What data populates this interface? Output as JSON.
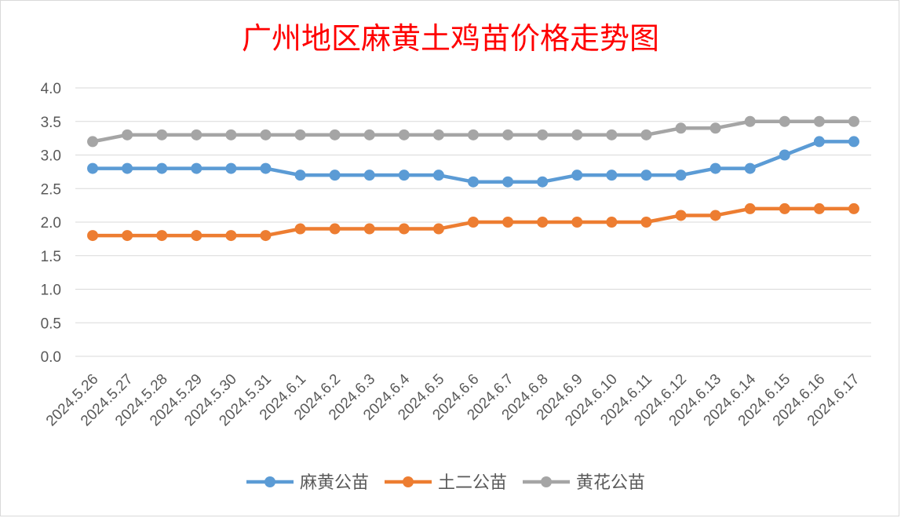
{
  "chart_data": {
    "type": "line",
    "title": "广州地区麻黄土鸡苗价格走势图",
    "xlabel": "",
    "ylabel": "",
    "ylim": [
      0,
      4.0
    ],
    "yticks": [
      "0.0",
      "0.5",
      "1.0",
      "1.5",
      "2.0",
      "2.5",
      "3.0",
      "3.5",
      "4.0"
    ],
    "grid": true,
    "legend_position": "bottom",
    "categories": [
      "2024.5.26",
      "2024.5.27",
      "2024.5.28",
      "2024.5.29",
      "2024.5.30",
      "2024.5.31",
      "2024.6.1",
      "2024.6.2",
      "2024.6.3",
      "2024.6.4",
      "2024.6.5",
      "2024.6.6",
      "2024.6.7",
      "2024.6.8",
      "2024.6.9",
      "2024.6.10",
      "2024.6.11",
      "2024.6.12",
      "2024.6.13",
      "2024.6.14",
      "2024.6.15",
      "2024.6.16",
      "2024.6.17"
    ],
    "series": [
      {
        "name": "麻黄公苗",
        "color": "#5b9bd5",
        "values": [
          2.8,
          2.8,
          2.8,
          2.8,
          2.8,
          2.8,
          2.7,
          2.7,
          2.7,
          2.7,
          2.7,
          2.6,
          2.6,
          2.6,
          2.7,
          2.7,
          2.7,
          2.7,
          2.8,
          2.8,
          3.0,
          3.2,
          3.2
        ]
      },
      {
        "name": "土二公苗",
        "color": "#ed7d31",
        "values": [
          1.8,
          1.8,
          1.8,
          1.8,
          1.8,
          1.8,
          1.9,
          1.9,
          1.9,
          1.9,
          1.9,
          2.0,
          2.0,
          2.0,
          2.0,
          2.0,
          2.0,
          2.1,
          2.1,
          2.2,
          2.2,
          2.2,
          2.2
        ]
      },
      {
        "name": "黄花公苗",
        "color": "#a5a5a5",
        "values": [
          3.2,
          3.3,
          3.3,
          3.3,
          3.3,
          3.3,
          3.3,
          3.3,
          3.3,
          3.3,
          3.3,
          3.3,
          3.3,
          3.3,
          3.3,
          3.3,
          3.3,
          3.4,
          3.4,
          3.5,
          3.5,
          3.5,
          3.5
        ]
      }
    ],
    "title_color": "#ff0000",
    "gridline_color": "#d9d9d9",
    "tick_label_color": "#595959"
  }
}
